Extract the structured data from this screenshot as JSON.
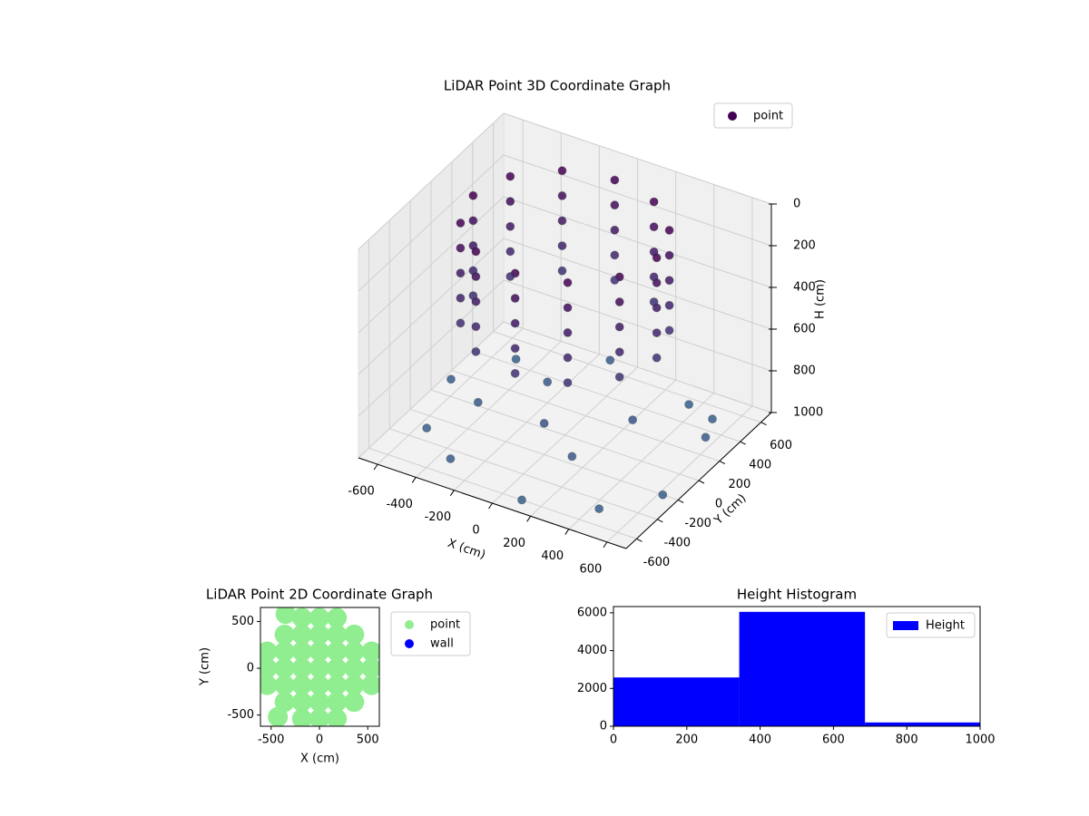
{
  "chart_data": [
    {
      "type": "scatter3d",
      "title": "LiDAR Point 3D Coordinate Graph",
      "xlabel": "X (cm)",
      "ylabel": "Y (cm)",
      "zlabel": "H (cm)",
      "series": [
        {
          "name": "point",
          "cmap": "viridis",
          "x": [
            480,
            416,
            240,
            0,
            -240,
            -416,
            -480,
            -416,
            -240,
            0,
            240,
            416,
            480,
            416,
            240,
            0,
            -240,
            -416,
            -480,
            -416,
            -240,
            0,
            240,
            416,
            480,
            416,
            240,
            0,
            -240,
            -416,
            -480,
            -416,
            -240,
            0,
            240,
            416,
            480,
            416,
            240,
            0,
            -240,
            -416,
            -480,
            -416,
            -240,
            0,
            240,
            416,
            480,
            416,
            240,
            0,
            -240,
            -416,
            -480,
            -416,
            -240,
            0,
            240,
            416,
            -560,
            -300,
            100,
            450,
            620,
            600,
            350,
            -100,
            -500,
            -650,
            200,
            -200,
            0,
            300,
            -400,
            500
          ],
          "y": [
            0,
            240,
            416,
            480,
            416,
            240,
            0,
            -240,
            -416,
            -480,
            -416,
            -240,
            0,
            240,
            416,
            480,
            416,
            240,
            0,
            -240,
            -416,
            -480,
            -416,
            -240,
            0,
            240,
            416,
            480,
            416,
            240,
            0,
            -240,
            -416,
            -480,
            -416,
            -240,
            0,
            240,
            416,
            480,
            416,
            240,
            0,
            -240,
            -416,
            -480,
            -416,
            -240,
            0,
            240,
            416,
            480,
            416,
            240,
            0,
            -240,
            -416,
            -480,
            -416,
            -240,
            -300,
            -550,
            -600,
            -500,
            -200,
            250,
            550,
            620,
            450,
            100,
            -300,
            200,
            -200,
            100,
            -100,
            500
          ],
          "z": [
            0,
            0,
            0,
            0,
            0,
            0,
            0,
            0,
            0,
            0,
            0,
            0,
            120,
            120,
            120,
            120,
            120,
            120,
            120,
            120,
            120,
            120,
            120,
            120,
            240,
            240,
            240,
            240,
            240,
            240,
            240,
            240,
            240,
            240,
            240,
            240,
            360,
            360,
            360,
            360,
            360,
            360,
            360,
            360,
            360,
            360,
            360,
            360,
            480,
            480,
            480,
            480,
            480,
            480,
            480,
            480,
            480,
            480,
            480,
            480,
            1000,
            950,
            1000,
            980,
            1000,
            940,
            1000,
            960,
            1000,
            980,
            900,
            900,
            850,
            880,
            920,
            1000
          ]
        }
      ],
      "xlim": [
        -700,
        700
      ],
      "ylim": [
        -700,
        700
      ],
      "zlim": [
        0,
        1000
      ],
      "z_inverted": true,
      "xticks": [
        -600,
        -400,
        -200,
        0,
        200,
        400,
        600
      ],
      "yticks": [
        -600,
        -400,
        -200,
        0,
        200,
        400,
        600
      ],
      "zticks": [
        0,
        200,
        400,
        600,
        800,
        1000
      ],
      "legend": "upper right",
      "grid": true
    },
    {
      "type": "scatter",
      "title": "LiDAR Point 2D Coordinate Graph",
      "xlabel": "X (cm)",
      "ylabel": "Y (cm)",
      "series": [
        {
          "name": "point",
          "color": "#90ee90",
          "x": [
            -180,
            0,
            180,
            -360,
            -180,
            0,
            180,
            360,
            -540,
            -360,
            -180,
            0,
            180,
            360,
            540,
            -540,
            -360,
            -180,
            0,
            180,
            360,
            540,
            -540,
            -360,
            -180,
            0,
            180,
            360,
            540,
            -360,
            -180,
            0,
            180,
            360,
            -180,
            0,
            180,
            -580,
            -350,
            -430
          ],
          "y": [
            -540,
            -540,
            -540,
            -360,
            -360,
            -360,
            -360,
            -360,
            -180,
            -180,
            -180,
            -180,
            -180,
            -180,
            -180,
            0,
            0,
            0,
            0,
            0,
            0,
            0,
            180,
            180,
            180,
            180,
            180,
            180,
            180,
            360,
            360,
            360,
            360,
            360,
            540,
            540,
            540,
            120,
            580,
            -520
          ]
        },
        {
          "name": "wall",
          "color": "#0000ff",
          "x": [],
          "y": []
        }
      ],
      "xlim": [
        -610,
        620
      ],
      "ylim": [
        -620,
        650
      ],
      "xticks": [
        -500,
        0,
        500
      ],
      "yticks": [
        -500,
        0,
        500
      ],
      "legend": "outside right"
    },
    {
      "type": "histogram",
      "title": "Height Histogram",
      "series": [
        {
          "name": "Height",
          "color": "#0000ff",
          "bins": [
            0,
            343,
            686,
            1029
          ],
          "counts": [
            2580,
            6050,
            200
          ]
        }
      ],
      "xlim": [
        0,
        1000
      ],
      "ylim": [
        0,
        6330
      ],
      "xticks": [
        0,
        200,
        400,
        600,
        800,
        1000
      ],
      "yticks": [
        0,
        2000,
        4000,
        6000
      ],
      "legend": "upper right"
    }
  ]
}
